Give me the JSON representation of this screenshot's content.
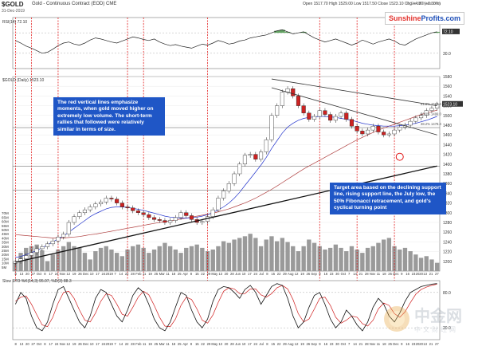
{
  "header": {
    "symbol": "$GOLD",
    "description": "Gold - Continuous Contract (EOD) CME",
    "date": "31-Dec-2019",
    "quote": "Open 1517.70  High 1529.00  Low 1517.50  Close 1523.10  Chg +4.80 (+0.30%)",
    "credit": "© StockCharts.com"
  },
  "brand": {
    "part1": "Sunshine",
    "part2": "Profits.com"
  },
  "annotations": {
    "left": "The red vertical lines emphasize moments, when gold moved higher on extremely low volume. The short-term rallies that followed were relatively similar in terms of size.",
    "right": "Target area based on the declining support line, rising support line, the July low, the 50% Fibonacci retracement, and gold's cyclical turning point"
  },
  "watermark": {
    "cn": "中金网",
    "sub": "中文财经网"
  },
  "colors": {
    "accent": "#1f56c6",
    "redline": "#e00000",
    "candle_up": "#ffffff",
    "candle_down": "#cc2222",
    "ma_blue": "#2233cc",
    "ma_red": "#b04040",
    "ma_green": "#2a8a2a",
    "ma_gray": "#888888"
  },
  "chart_data": [
    {
      "type": "line",
      "panel": "rsi",
      "label": "RSI(14) 72.10",
      "ylim": [
        0,
        100
      ],
      "levels": [
        30,
        70
      ],
      "level_labels": [
        "70.0",
        "30.0"
      ],
      "last_label": "72.10",
      "values": [
        55,
        50,
        44,
        40,
        35,
        30,
        32,
        38,
        45,
        50,
        52,
        48,
        46,
        50,
        56,
        60,
        58,
        55,
        52,
        50,
        54,
        58,
        62,
        60,
        57,
        55,
        58,
        52,
        48,
        45,
        47,
        44,
        42,
        40,
        44,
        48,
        46,
        50,
        55,
        52,
        48,
        50,
        54,
        56,
        60,
        62,
        64,
        66,
        70,
        74,
        76,
        72,
        68,
        70,
        72,
        66,
        60,
        56,
        52,
        55,
        58,
        54,
        50,
        46,
        50,
        56,
        52,
        48,
        52,
        55,
        58,
        54,
        48,
        46,
        52,
        58,
        62,
        66,
        70,
        72
      ]
    },
    {
      "type": "line",
      "panel": "price",
      "label": "$GOLD (Daily) 1523.10",
      "ylim": [
        1180,
        1580
      ],
      "price_ticks": [
        1580,
        1560,
        1540,
        1520,
        1500,
        1480,
        1460,
        1440,
        1420,
        1400,
        1380,
        1360,
        1340,
        1320,
        1300,
        1280,
        1260,
        1240,
        1220,
        1200
      ],
      "last_price_label": "1523.10",
      "fib_labels": [
        "61.8% 1519.6",
        "50.0% 1499.0",
        "38.2% 1478.4",
        "61.8% 1346.0"
      ],
      "closes": [
        1200,
        1205,
        1212,
        1218,
        1226,
        1230,
        1236,
        1242,
        1250,
        1256,
        1280,
        1292,
        1300,
        1306,
        1312,
        1318,
        1322,
        1330,
        1328,
        1320,
        1312,
        1310,
        1304,
        1300,
        1296,
        1290,
        1286,
        1284,
        1280,
        1284,
        1290,
        1300,
        1294,
        1286,
        1280,
        1282,
        1292,
        1306,
        1330,
        1345,
        1360,
        1380,
        1400,
        1418,
        1420,
        1410,
        1425,
        1450,
        1500,
        1520,
        1548,
        1555,
        1540,
        1520,
        1505,
        1492,
        1498,
        1510,
        1502,
        1490,
        1498,
        1505,
        1492,
        1478,
        1468,
        1462,
        1470,
        1478,
        1466,
        1460,
        1462,
        1470,
        1476,
        1480,
        1488,
        1495,
        1500,
        1510,
        1515,
        1523
      ],
      "ma50": [
        1208,
        1210,
        1214,
        1218,
        1222,
        1228,
        1234,
        1240,
        1246,
        1252,
        1260,
        1268,
        1276,
        1284,
        1292,
        1298,
        1303,
        1308,
        1311,
        1312,
        1312,
        1311,
        1309,
        1307,
        1305,
        1302,
        1299,
        1296,
        1293,
        1291,
        1290,
        1289,
        1289,
        1290,
        1291,
        1293,
        1296,
        1300,
        1306,
        1312,
        1320,
        1330,
        1342,
        1356,
        1370,
        1384,
        1398,
        1414,
        1432,
        1448,
        1464,
        1476,
        1484,
        1490,
        1494,
        1496,
        1497,
        1498,
        1498,
        1497,
        1496,
        1494,
        1492,
        1490,
        1487,
        1484,
        1482,
        1480,
        1479,
        1478,
        1478,
        1478,
        1479,
        1480,
        1482,
        1484,
        1487,
        1490,
        1494,
        1498
      ],
      "ma200": [
        1255,
        1254,
        1253,
        1252,
        1251,
        1250,
        1249,
        1248,
        1248,
        1248,
        1249,
        1250,
        1251,
        1253,
        1255,
        1256,
        1258,
        1260,
        1262,
        1264,
        1266,
        1268,
        1270,
        1272,
        1274,
        1276,
        1278,
        1280,
        1282,
        1283,
        1285,
        1287,
        1289,
        1291,
        1293,
        1295,
        1297,
        1299,
        1302,
        1305,
        1308,
        1312,
        1316,
        1320,
        1325,
        1330,
        1336,
        1342,
        1348,
        1355,
        1362,
        1369,
        1376,
        1383,
        1390,
        1396,
        1402,
        1408,
        1414,
        1420,
        1426,
        1432,
        1438,
        1444,
        1450,
        1455,
        1460,
        1465,
        1470,
        1474,
        1478,
        1482,
        1486,
        1490,
        1494,
        1498,
        1502,
        1505,
        1508,
        1511
      ],
      "support_line": [
        [
          0,
          1198
        ],
        [
          79,
          1396
        ]
      ],
      "declining_line": [
        [
          48,
          1557
        ],
        [
          79,
          1460
        ]
      ],
      "upper_channel": [
        [
          48,
          1575
        ],
        [
          79,
          1520
        ]
      ],
      "horizontal_levels": [
        1475,
        1396,
        1346
      ],
      "target_marker": [
        72,
        1415
      ],
      "red_verticals": [
        0,
        3,
        8,
        21,
        24,
        36,
        57,
        64,
        71
      ]
    },
    {
      "type": "bar",
      "panel": "volume",
      "label": "Volume",
      "volume_ticks": [
        "70M",
        "65M",
        "60M",
        "55M",
        "50M",
        "45M",
        "40M",
        "35M",
        "30M",
        "25M",
        "20M",
        "15M",
        "10M",
        "5M"
      ],
      "values": [
        10,
        22,
        28,
        30,
        32,
        25,
        12,
        20,
        26,
        30,
        35,
        30,
        28,
        22,
        14,
        24,
        28,
        30,
        26,
        22,
        18,
        26,
        30,
        32,
        28,
        22,
        26,
        30,
        34,
        30,
        26,
        22,
        28,
        30,
        32,
        28,
        24,
        26,
        30,
        36,
        34,
        38,
        40,
        42,
        45,
        40,
        30,
        38,
        42,
        36,
        40,
        35,
        30,
        24,
        30,
        38,
        34,
        30,
        26,
        28,
        32,
        28,
        24,
        30,
        26,
        22,
        28,
        30,
        34,
        38,
        40,
        30,
        26,
        28,
        24,
        20,
        16,
        18,
        14,
        10
      ]
    },
    {
      "type": "line",
      "panel": "stochastic",
      "label": "Slow STO %K(14,3) 95.07, %D(3) 88.3",
      "ylim": [
        0,
        100
      ],
      "k": [
        60,
        80,
        70,
        40,
        20,
        15,
        30,
        60,
        85,
        90,
        70,
        50,
        30,
        20,
        40,
        70,
        85,
        80,
        60,
        40,
        30,
        50,
        75,
        88,
        80,
        60,
        35,
        20,
        15,
        30,
        55,
        80,
        75,
        50,
        30,
        20,
        35,
        65,
        85,
        90,
        88,
        80,
        70,
        85,
        92,
        80,
        60,
        75,
        90,
        95,
        92,
        70,
        40,
        20,
        30,
        55,
        75,
        80,
        60,
        35,
        20,
        30,
        50,
        40,
        25,
        15,
        30,
        55,
        70,
        60,
        40,
        30,
        45,
        65,
        80,
        85,
        90,
        92,
        94,
        95
      ],
      "d": [
        65,
        72,
        74,
        60,
        42,
        25,
        22,
        38,
        62,
        80,
        82,
        70,
        50,
        33,
        30,
        45,
        65,
        78,
        75,
        60,
        43,
        40,
        55,
        72,
        82,
        76,
        58,
        38,
        23,
        22,
        35,
        58,
        72,
        68,
        52,
        33,
        28,
        42,
        63,
        82,
        88,
        86,
        78,
        78,
        86,
        86,
        76,
        72,
        78,
        88,
        92,
        86,
        68,
        44,
        30,
        35,
        52,
        70,
        72,
        58,
        38,
        28,
        33,
        40,
        38,
        27,
        23,
        33,
        52,
        62,
        58,
        44,
        38,
        47,
        63,
        77,
        85,
        89,
        92,
        94
      ],
      "levels": [
        80,
        20
      ],
      "level_labels": [
        "80.0",
        "20.0"
      ]
    }
  ],
  "x_axis": {
    "top_labels": [
      "8",
      "13",
      "20",
      "27",
      "Oct",
      "8",
      "17",
      "24",
      "Nov",
      "12",
      "19",
      "26",
      "Dec",
      "10",
      "17",
      "24",
      "2019",
      "7",
      "14",
      "22",
      "28",
      "Feb",
      "11",
      "19",
      "25",
      "Mar",
      "11",
      "18",
      "25",
      "Apr",
      "8",
      "15",
      "22",
      "29",
      "May",
      "13",
      "20",
      "28",
      "Jun",
      "10",
      "17",
      "24",
      "Jul",
      "8",
      "15",
      "22",
      "29",
      "Aug",
      "12",
      "19",
      "26",
      "Sep",
      "9",
      "16",
      "23",
      "30",
      "Oct",
      "7",
      "14",
      "21",
      "28",
      "Nov",
      "11",
      "18",
      "25",
      "Dec",
      "9",
      "16",
      "23",
      "2020",
      "13",
      "21",
      "27"
    ]
  }
}
